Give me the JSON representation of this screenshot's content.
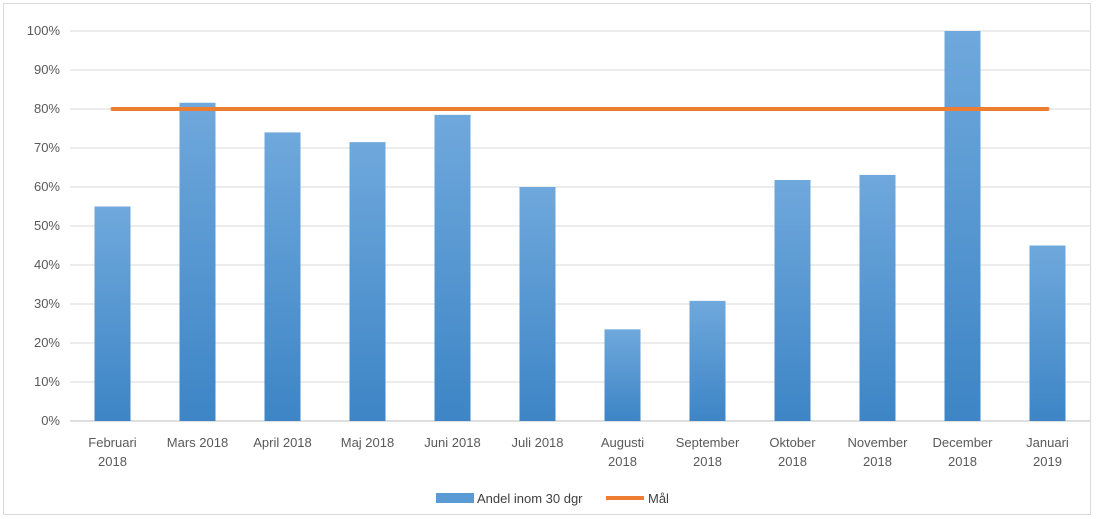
{
  "chart_data": {
    "type": "bar",
    "categories": [
      [
        "Februari",
        "2018"
      ],
      [
        "Mars 2018"
      ],
      [
        "April 2018"
      ],
      [
        "Maj 2018"
      ],
      [
        "Juni 2018"
      ],
      [
        "Juli 2018"
      ],
      [
        "Augusti",
        "2018"
      ],
      [
        "September",
        "2018"
      ],
      [
        "Oktober",
        "2018"
      ],
      [
        "November",
        "2018"
      ],
      [
        "December",
        "2018"
      ],
      [
        "Januari",
        "2019"
      ]
    ],
    "series": [
      {
        "name": "Andel inom 30 dgr",
        "type": "bar",
        "values": [
          55,
          81.6,
          74,
          71.5,
          78.5,
          60,
          23.5,
          30.8,
          61.8,
          63.1,
          100,
          45
        ],
        "color": "#5b9bd5"
      },
      {
        "name": "Mål",
        "type": "line",
        "values": [
          80,
          80,
          80,
          80,
          80,
          80,
          80,
          80,
          80,
          80,
          80,
          80
        ],
        "color": "#ed7d31"
      }
    ],
    "y_ticks": [
      "0%",
      "10%",
      "20%",
      "30%",
      "40%",
      "50%",
      "60%",
      "70%",
      "80%",
      "90%",
      "100%"
    ],
    "ylim": [
      0,
      100
    ],
    "grid": true,
    "legend_position": "bottom"
  }
}
